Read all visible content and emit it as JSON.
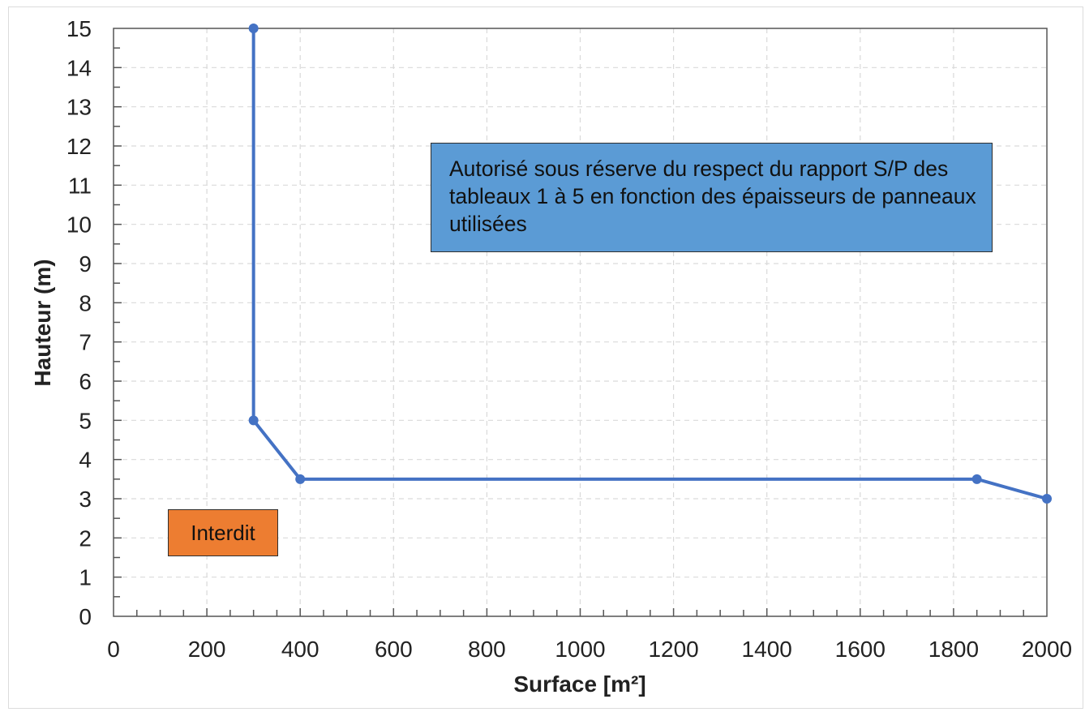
{
  "chart_data": {
    "type": "line",
    "xlabel": "Surface [m²]",
    "ylabel": "Hauteur (m)",
    "xlim": [
      0,
      2000
    ],
    "ylim": [
      0,
      15
    ],
    "x_ticks": [
      0,
      200,
      400,
      600,
      800,
      1000,
      1200,
      1400,
      1600,
      1800,
      2000
    ],
    "y_ticks": [
      0,
      1,
      2,
      3,
      4,
      5,
      6,
      7,
      8,
      9,
      10,
      11,
      12,
      13,
      14,
      15
    ],
    "x_minor_step": 50,
    "y_minor_step": 0.5,
    "grid": true,
    "grid_style": "dashed",
    "series": [
      {
        "color": "#4472c4",
        "points": [
          {
            "x": 300,
            "y": 15
          },
          {
            "x": 300,
            "y": 5
          },
          {
            "x": 400,
            "y": 3.5
          },
          {
            "x": 1850,
            "y": 3.5
          },
          {
            "x": 2000,
            "y": 3
          }
        ]
      }
    ],
    "annotations": [
      {
        "id": "allowed",
        "text": "Autorisé sous réserve du respect du rapport S/P des tableaux 1 à 5 en fonction des épaisseurs de panneaux utilisées",
        "fill": "#5b9bd5"
      },
      {
        "id": "forbidden",
        "text": "Interdit",
        "fill": "#ed7d31"
      }
    ]
  }
}
